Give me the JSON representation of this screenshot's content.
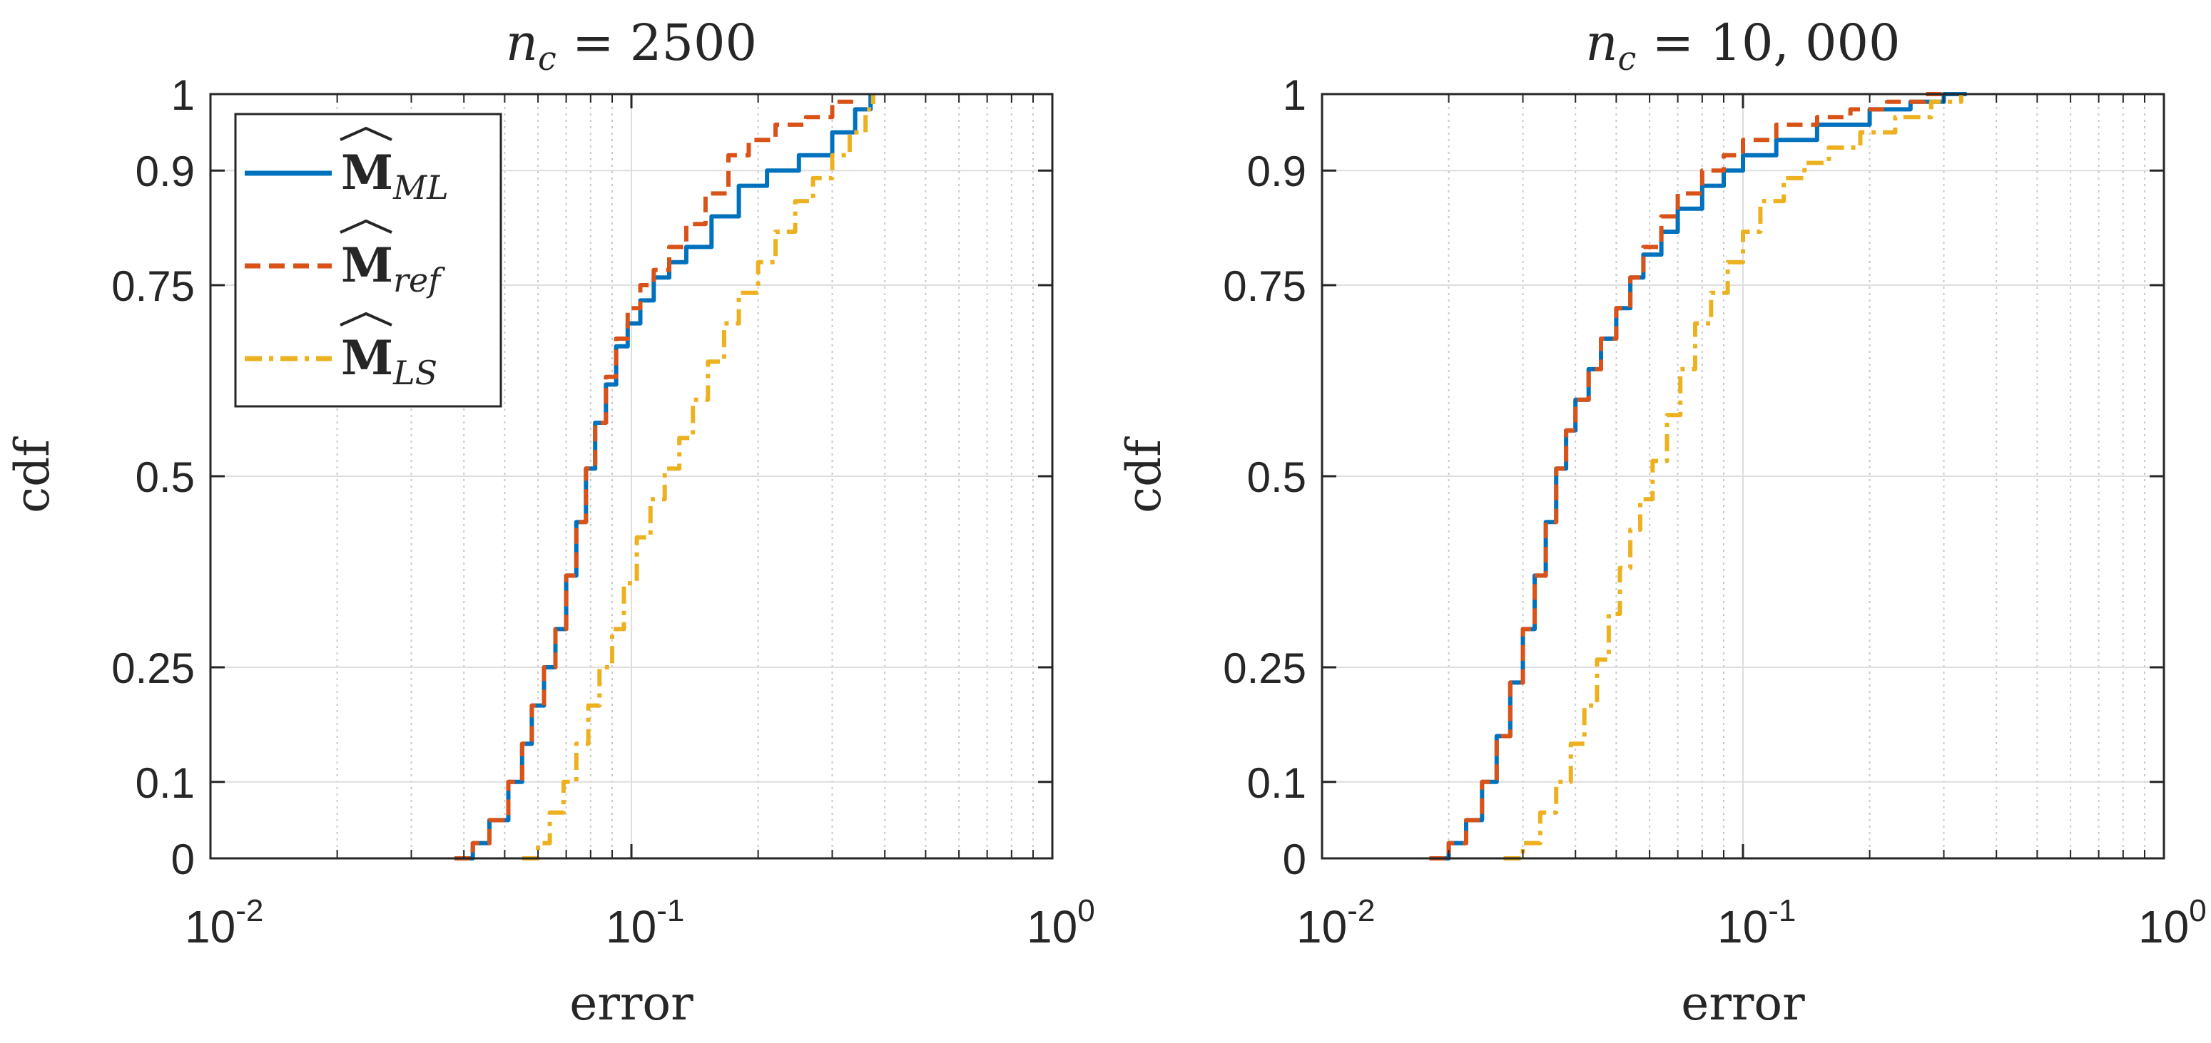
{
  "chart_data": [
    {
      "type": "line",
      "title": "n_c = 2500",
      "title_main": "n",
      "title_sub": "c",
      "title_rest": " = 2500",
      "xlabel": "error",
      "ylabel": "cdf",
      "xscale": "log",
      "xlim": [
        0.01,
        1
      ],
      "ylim": [
        0,
        1
      ],
      "grid": true,
      "x_ticks": [
        {
          "base": "10",
          "exp": "-2",
          "value": 0.01
        },
        {
          "base": "10",
          "exp": "-1",
          "value": 0.1
        },
        {
          "base": "10",
          "exp": "0",
          "value": 1
        }
      ],
      "y_ticks": [
        {
          "label": "0",
          "value": 0
        },
        {
          "label": "0.1",
          "value": 0.1
        },
        {
          "label": "0.25",
          "value": 0.25
        },
        {
          "label": "0.5",
          "value": 0.5
        },
        {
          "label": "0.75",
          "value": 0.75
        },
        {
          "label": "0.9",
          "value": 0.9
        },
        {
          "label": "1",
          "value": 1
        }
      ],
      "legend": {
        "location": "top-left",
        "entries": [
          {
            "main": "M",
            "sub": "ML",
            "color": "#0072BD",
            "style": "solid"
          },
          {
            "main": "M",
            "sub": "ref",
            "color": "#D95319",
            "style": "dashed"
          },
          {
            "main": "M",
            "sub": "LS",
            "color": "#EDB120",
            "style": "dashdot"
          }
        ]
      },
      "series": [
        {
          "name": "M_ML",
          "color": "#0072BD",
          "style": "solid",
          "x": [
            0.038,
            0.042,
            0.046,
            0.051,
            0.055,
            0.058,
            0.062,
            0.066,
            0.07,
            0.074,
            0.078,
            0.082,
            0.087,
            0.092,
            0.098,
            0.105,
            0.113,
            0.123,
            0.135,
            0.155,
            0.18,
            0.21,
            0.25,
            0.3,
            0.34,
            0.37
          ],
          "y": [
            0.0,
            0.02,
            0.05,
            0.1,
            0.15,
            0.2,
            0.25,
            0.3,
            0.37,
            0.44,
            0.51,
            0.57,
            0.62,
            0.67,
            0.7,
            0.73,
            0.76,
            0.78,
            0.8,
            0.84,
            0.88,
            0.9,
            0.92,
            0.95,
            0.98,
            1.0
          ]
        },
        {
          "name": "M_ref",
          "color": "#D95319",
          "style": "dashed",
          "x": [
            0.038,
            0.042,
            0.046,
            0.051,
            0.055,
            0.058,
            0.062,
            0.066,
            0.07,
            0.074,
            0.078,
            0.082,
            0.087,
            0.092,
            0.098,
            0.105,
            0.113,
            0.123,
            0.135,
            0.15,
            0.17,
            0.19,
            0.22,
            0.26,
            0.3,
            0.34
          ],
          "y": [
            0.0,
            0.02,
            0.05,
            0.1,
            0.15,
            0.2,
            0.25,
            0.3,
            0.37,
            0.44,
            0.51,
            0.57,
            0.63,
            0.68,
            0.72,
            0.75,
            0.77,
            0.8,
            0.83,
            0.87,
            0.92,
            0.94,
            0.96,
            0.97,
            0.99,
            1.0
          ]
        },
        {
          "name": "M_LS",
          "color": "#EDB120",
          "style": "dashdot",
          "x": [
            0.055,
            0.06,
            0.064,
            0.069,
            0.074,
            0.079,
            0.084,
            0.09,
            0.096,
            0.103,
            0.111,
            0.12,
            0.13,
            0.14,
            0.152,
            0.166,
            0.18,
            0.2,
            0.22,
            0.245,
            0.27,
            0.3,
            0.33,
            0.36,
            0.375
          ],
          "y": [
            0.0,
            0.02,
            0.06,
            0.1,
            0.15,
            0.2,
            0.25,
            0.3,
            0.36,
            0.42,
            0.47,
            0.51,
            0.55,
            0.6,
            0.65,
            0.7,
            0.74,
            0.78,
            0.82,
            0.86,
            0.89,
            0.92,
            0.95,
            0.98,
            1.0
          ]
        }
      ]
    },
    {
      "type": "line",
      "title": "n_c = 10,000",
      "title_main": "n",
      "title_sub": "c",
      "title_rest": " = 10, 000",
      "xlabel": "error",
      "ylabel": "cdf",
      "xscale": "log",
      "xlim": [
        0.01,
        1
      ],
      "ylim": [
        0,
        1
      ],
      "grid": true,
      "x_ticks": [
        {
          "base": "10",
          "exp": "-2",
          "value": 0.01
        },
        {
          "base": "10",
          "exp": "-1",
          "value": 0.1
        },
        {
          "base": "10",
          "exp": "0",
          "value": 1
        }
      ],
      "y_ticks": [
        {
          "label": "0",
          "value": 0
        },
        {
          "label": "0.1",
          "value": 0.1
        },
        {
          "label": "0.25",
          "value": 0.25
        },
        {
          "label": "0.5",
          "value": 0.5
        },
        {
          "label": "0.75",
          "value": 0.75
        },
        {
          "label": "0.9",
          "value": 0.9
        },
        {
          "label": "1",
          "value": 1
        }
      ],
      "series": [
        {
          "name": "M_ML",
          "color": "#0072BD",
          "style": "solid",
          "x": [
            0.018,
            0.02,
            0.022,
            0.024,
            0.026,
            0.028,
            0.03,
            0.032,
            0.034,
            0.036,
            0.038,
            0.04,
            0.043,
            0.046,
            0.05,
            0.054,
            0.058,
            0.064,
            0.07,
            0.08,
            0.09,
            0.1,
            0.12,
            0.15,
            0.2,
            0.25,
            0.3,
            0.34
          ],
          "y": [
            0.0,
            0.02,
            0.05,
            0.1,
            0.16,
            0.23,
            0.3,
            0.37,
            0.44,
            0.51,
            0.56,
            0.6,
            0.64,
            0.68,
            0.72,
            0.76,
            0.79,
            0.82,
            0.85,
            0.88,
            0.9,
            0.92,
            0.94,
            0.96,
            0.98,
            0.99,
            1.0,
            1.0
          ]
        },
        {
          "name": "M_ref",
          "color": "#D95319",
          "style": "dashed",
          "x": [
            0.018,
            0.02,
            0.022,
            0.024,
            0.026,
            0.028,
            0.03,
            0.032,
            0.034,
            0.036,
            0.038,
            0.04,
            0.043,
            0.046,
            0.05,
            0.054,
            0.058,
            0.064,
            0.07,
            0.08,
            0.09,
            0.1,
            0.12,
            0.15,
            0.18,
            0.22,
            0.27,
            0.3
          ],
          "y": [
            0.0,
            0.02,
            0.05,
            0.1,
            0.16,
            0.23,
            0.3,
            0.37,
            0.44,
            0.51,
            0.56,
            0.6,
            0.64,
            0.68,
            0.72,
            0.76,
            0.8,
            0.84,
            0.87,
            0.9,
            0.92,
            0.94,
            0.96,
            0.97,
            0.98,
            0.99,
            1.0,
            1.0
          ]
        },
        {
          "name": "M_LS",
          "color": "#EDB120",
          "style": "dashdot",
          "x": [
            0.027,
            0.03,
            0.033,
            0.036,
            0.039,
            0.042,
            0.045,
            0.048,
            0.051,
            0.054,
            0.057,
            0.061,
            0.066,
            0.071,
            0.077,
            0.084,
            0.092,
            0.1,
            0.11,
            0.125,
            0.14,
            0.16,
            0.19,
            0.23,
            0.28,
            0.33
          ],
          "y": [
            0.0,
            0.02,
            0.06,
            0.1,
            0.15,
            0.2,
            0.26,
            0.32,
            0.38,
            0.43,
            0.47,
            0.52,
            0.58,
            0.64,
            0.7,
            0.74,
            0.78,
            0.82,
            0.86,
            0.89,
            0.91,
            0.93,
            0.95,
            0.97,
            0.99,
            1.0
          ]
        }
      ]
    }
  ]
}
